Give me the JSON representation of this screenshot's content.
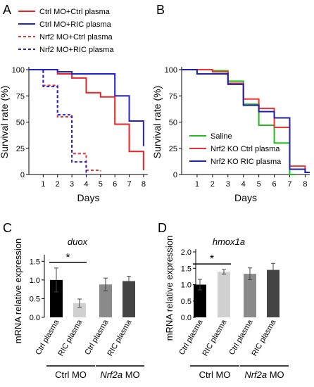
{
  "panels": [
    {
      "letter": "A"
    },
    {
      "letter": "B"
    },
    {
      "letter": "C"
    },
    {
      "letter": "D"
    }
  ],
  "chart_data": [
    {
      "panel": "A",
      "type": "line",
      "step": true,
      "xlabel": "Days",
      "ylabel": "Survival rate (%)",
      "xlim": [
        0,
        8.3
      ],
      "ylim": [
        0,
        100
      ],
      "xticks": [
        1,
        2,
        3,
        4,
        5,
        6,
        7,
        8
      ],
      "yticks": [
        0,
        25,
        50,
        75,
        100
      ],
      "legend_position": "top",
      "series": [
        {
          "name": "Ctrl MO+Ctrl plasma",
          "color": "#ee2222",
          "dash": false,
          "x": [
            0,
            2,
            3,
            4,
            5,
            6,
            7,
            8
          ],
          "y": [
            100,
            96,
            92,
            78,
            74,
            48,
            22,
            4
          ]
        },
        {
          "name": "Ctrl MO+RIC plasma",
          "color": "#2222cc",
          "dash": false,
          "x": [
            0,
            2,
            3,
            6,
            7,
            8
          ],
          "y": [
            100,
            98,
            96,
            75,
            51,
            27
          ]
        },
        {
          "name": "Nrf2 MO+Ctrl plasma",
          "color": "#ee3333",
          "dash": true,
          "x": [
            0,
            1,
            2,
            3,
            4,
            5
          ],
          "y": [
            100,
            85,
            55,
            20,
            4,
            3
          ]
        },
        {
          "name": "Nrf2 MO+RIC plasma",
          "color": "#2222cc",
          "dash": true,
          "x": [
            0,
            1,
            2,
            3,
            4
          ],
          "y": [
            100,
            84,
            57,
            12,
            0
          ]
        }
      ]
    },
    {
      "panel": "B",
      "type": "line",
      "step": true,
      "xlabel": "Days",
      "ylabel": "Survival rate (%)",
      "xlim": [
        0,
        8.3
      ],
      "ylim": [
        0,
        100
      ],
      "xticks": [
        1,
        2,
        3,
        4,
        5,
        6,
        7,
        8
      ],
      "yticks": [
        0,
        25,
        50,
        75,
        100
      ],
      "legend_position": "bottom-left",
      "series": [
        {
          "name": "Saline",
          "color": "#22bb22",
          "dash": false,
          "x": [
            0,
            2,
            3,
            4,
            5,
            6,
            7
          ],
          "y": [
            100,
            99,
            89,
            67,
            47,
            30,
            0
          ]
        },
        {
          "name": "Nrf2 KO Ctrl plasma",
          "color": "#ee3333",
          "dash": false,
          "x": [
            0,
            2,
            3,
            4,
            5,
            6,
            7,
            8
          ],
          "y": [
            100,
            98,
            87,
            72,
            63,
            45,
            8,
            2
          ]
        },
        {
          "name": "Nrf2 KO RIC plasma",
          "color": "#2222aa",
          "dash": false,
          "x": [
            0,
            1,
            3,
            4,
            5,
            6,
            7,
            8
          ],
          "y": [
            100,
            96,
            86,
            66,
            60,
            54,
            5,
            2
          ]
        }
      ]
    },
    {
      "panel": "C",
      "type": "bar",
      "title": "duox",
      "ylabel": "mRNA relative expression",
      "ylim": [
        0,
        1.6
      ],
      "yticks": [
        0.0,
        0.5,
        1.0,
        1.5
      ],
      "categories": [
        "Ctrl plasma",
        "RIC plasma",
        "Ctrl plasma",
        "RIC plasma"
      ],
      "values": [
        1.0,
        0.38,
        0.88,
        0.97
      ],
      "errors": [
        0.32,
        0.11,
        0.17,
        0.13
      ],
      "bar_colors": [
        "#000000",
        "#d0d0d0",
        "#8a8a8a",
        "#444444"
      ],
      "groups": [
        {
          "label": "Ctrl MO",
          "italic_prefix": ""
        },
        {
          "label": " MO",
          "italic_prefix": "Nrf2a"
        }
      ],
      "significance": {
        "between": [
          0,
          1
        ],
        "label": "*"
      }
    },
    {
      "panel": "D",
      "type": "bar",
      "title": "hmox1a",
      "ylabel": "mRNA relative expression",
      "ylim": [
        0,
        2.0
      ],
      "yticks": [
        0.0,
        0.5,
        1.0,
        1.5,
        2.0
      ],
      "categories": [
        "Ctrl plasma",
        "RIC plasma",
        "Ctrl plasma",
        "RIC plasma"
      ],
      "values": [
        1.0,
        1.39,
        1.33,
        1.45
      ],
      "errors": [
        0.16,
        0.07,
        0.18,
        0.2
      ],
      "bar_colors": [
        "#000000",
        "#d0d0d0",
        "#8a8a8a",
        "#444444"
      ],
      "groups": [
        {
          "label": "Ctrl MO",
          "italic_prefix": ""
        },
        {
          "label": " MO",
          "italic_prefix": "Nrf2a"
        }
      ],
      "significance": {
        "between": [
          0,
          1
        ],
        "label": "*"
      }
    }
  ]
}
